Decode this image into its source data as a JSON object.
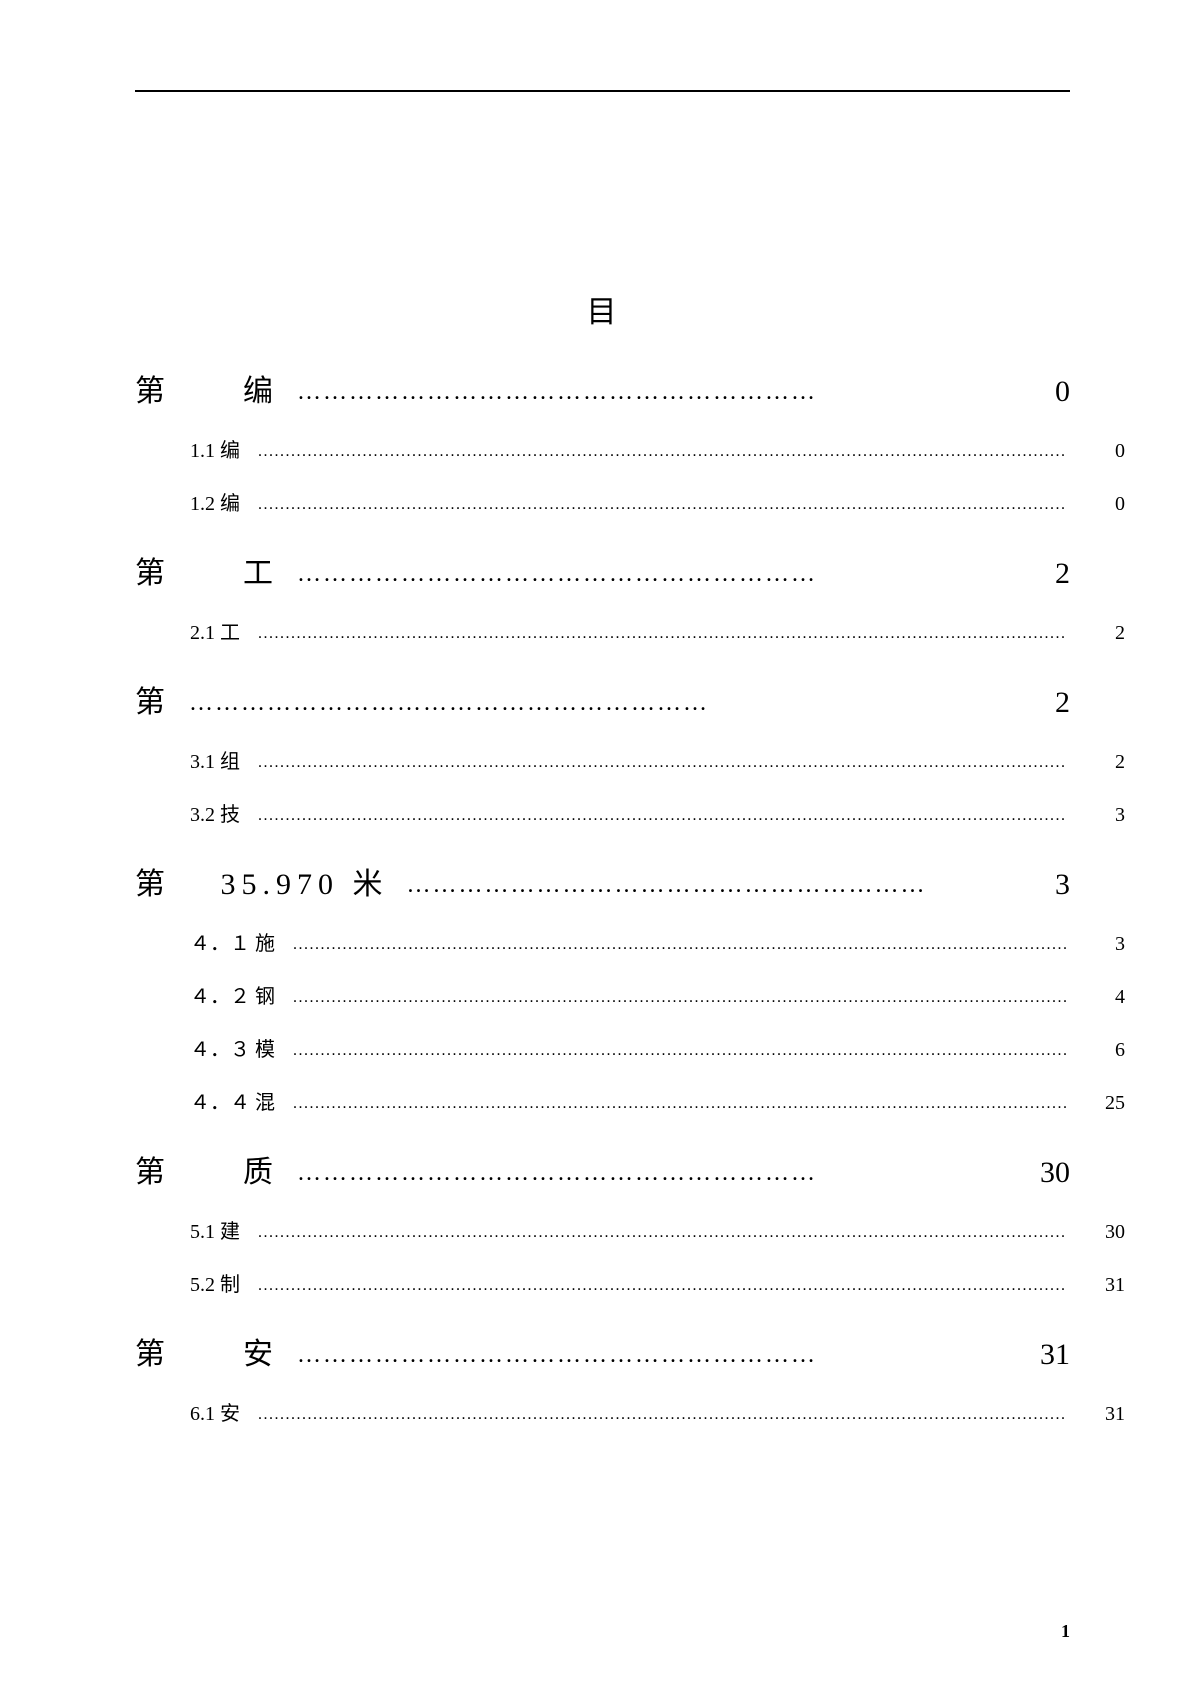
{
  "title": "目",
  "page_number": "1",
  "leaders": {
    "l1": "……………………………………………………",
    "l2": "................................................................................................................................................................................"
  },
  "toc": [
    {
      "level": 1,
      "label": "第　　编",
      "page": "0"
    },
    {
      "level": 2,
      "label": "1.1 编",
      "page": "0"
    },
    {
      "level": 2,
      "label": "1.2 编",
      "page": "0"
    },
    {
      "level": 1,
      "label": "第　　工",
      "page": "2"
    },
    {
      "level": 2,
      "label": "2.1 工",
      "page": "2"
    },
    {
      "level": 1,
      "label": "第",
      "page": "2"
    },
    {
      "level": 2,
      "label": "3.1 组",
      "page": "2"
    },
    {
      "level": 2,
      "label": "3.2 技",
      "page": "3"
    },
    {
      "level": 1,
      "label": "第　 35.970 米",
      "page": "3"
    },
    {
      "level": 2,
      "label": "４．１ 施",
      "page": "3"
    },
    {
      "level": 2,
      "label": "４．２ 钢",
      "page": "4"
    },
    {
      "level": 2,
      "label": "４．３ 模",
      "page": "6"
    },
    {
      "level": 2,
      "label": "４．４ 混",
      "page": "25"
    },
    {
      "level": 1,
      "label": "第　　质",
      "page": "30"
    },
    {
      "level": 2,
      "label": "5.1 建",
      "page": "30"
    },
    {
      "level": 2,
      "label": "5.2 制",
      "page": "31"
    },
    {
      "level": 1,
      "label": "第　　安",
      "page": "31"
    },
    {
      "level": 2,
      "label": "6.1 安",
      "page": "31"
    }
  ]
}
